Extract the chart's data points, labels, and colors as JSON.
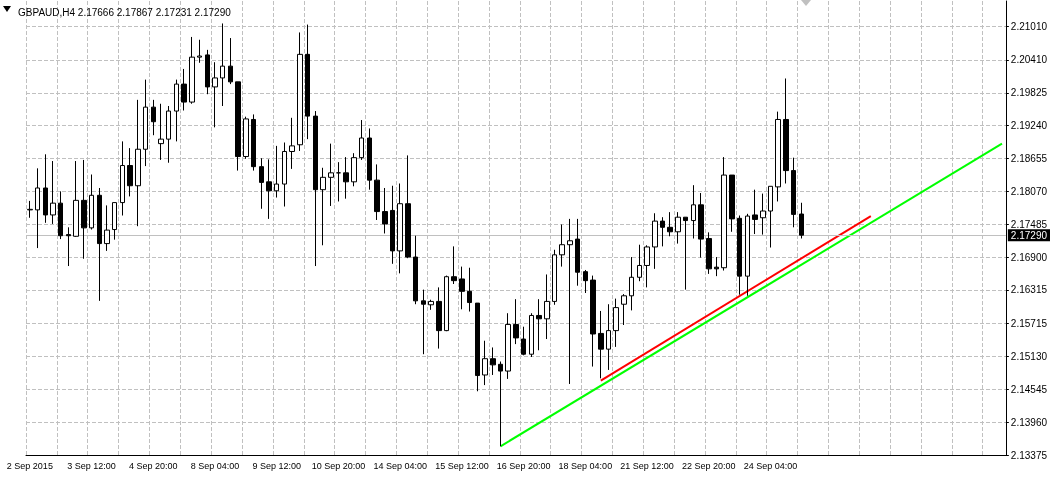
{
  "chart_data": {
    "type": "candlestick",
    "title": "GBPAUD,H4 2.17666 2.17867 2.17231 2.17290",
    "categories": [
      "2 Sep 2015",
      null,
      null,
      null,
      null,
      null,
      null,
      null,
      "3 Sep 12:00",
      null,
      null,
      null,
      null,
      null,
      null,
      null,
      "4 Sep 20:00",
      null,
      null,
      null,
      null,
      null,
      null,
      null,
      "8 Sep 04:00",
      null,
      null,
      null,
      null,
      null,
      null,
      null,
      "9 Sep 12:00",
      null,
      null,
      null,
      null,
      null,
      null,
      null,
      "10 Sep 20:00",
      null,
      null,
      null,
      null,
      null,
      null,
      null,
      "14 Sep 04:00",
      null,
      null,
      null,
      null,
      null,
      null,
      null,
      "15 Sep 12:00",
      null,
      null,
      null,
      null,
      null,
      null,
      null,
      "16 Sep 20:00",
      null,
      null,
      null,
      null,
      null,
      null,
      null,
      "18 Sep 04:00",
      null,
      null,
      null,
      null,
      null,
      null,
      null,
      "21 Sep 12:00",
      null,
      null,
      null,
      null,
      null,
      null,
      null,
      "22 Sep 20:00",
      null,
      null,
      null,
      null,
      null,
      null,
      null,
      "24 Sep 04:00",
      null,
      null,
      null,
      null,
      null,
      null,
      null,
      null,
      null,
      null,
      null,
      null,
      null,
      null,
      null,
      null,
      null,
      null,
      null,
      null,
      null,
      null,
      null,
      null,
      null,
      null,
      null,
      null,
      null,
      null
    ],
    "ohlc": [
      [
        2.1774,
        2.179,
        2.176,
        2.1775
      ],
      [
        2.1774,
        2.1848,
        2.1706,
        2.1813
      ],
      [
        2.1813,
        2.1873,
        2.1751,
        2.1765
      ],
      [
        2.1765,
        2.1861,
        2.1749,
        2.1786
      ],
      [
        2.1786,
        2.1807,
        2.1722,
        2.1728
      ],
      [
        2.173,
        2.1743,
        2.1674,
        2.1728
      ],
      [
        2.1727,
        2.1861,
        2.1726,
        2.1791
      ],
      [
        2.1791,
        2.1863,
        2.1687,
        2.1742
      ],
      [
        2.1742,
        2.1837,
        2.1739,
        2.18
      ],
      [
        2.18,
        2.1813,
        2.1612,
        2.1714
      ],
      [
        2.1714,
        2.1782,
        2.1701,
        2.1738
      ],
      [
        2.1739,
        2.1787,
        2.1721,
        2.1787
      ],
      [
        2.1787,
        2.1896,
        2.1764,
        2.1853
      ],
      [
        2.1853,
        2.1884,
        2.1798,
        2.1817
      ],
      [
        2.1817,
        2.197,
        2.1745,
        2.1882
      ],
      [
        2.1882,
        2.2006,
        2.1852,
        2.1957
      ],
      [
        2.1957,
        2.197,
        2.1907,
        2.1931
      ],
      [
        2.1892,
        2.1963,
        2.1863,
        2.19
      ],
      [
        2.19,
        2.1959,
        2.1858,
        2.195
      ],
      [
        2.195,
        2.2006,
        2.1896,
        2.1998
      ],
      [
        2.1998,
        2.2025,
        2.1951,
        2.1966
      ],
      [
        2.1966,
        2.2082,
        2.1963,
        2.2046
      ],
      [
        2.2046,
        2.2077,
        2.2036,
        2.2048
      ],
      [
        2.205,
        2.2059,
        2.198,
        2.1993
      ],
      [
        2.1993,
        2.2037,
        2.1921,
        2.2009
      ],
      [
        2.2009,
        2.2106,
        2.1959,
        2.203
      ],
      [
        2.203,
        2.208,
        2.1998,
        2.2002
      ],
      [
        2.2002,
        2.2002,
        2.1844,
        2.1869
      ],
      [
        2.1869,
        2.194,
        2.1865,
        2.1936
      ],
      [
        2.1935,
        2.1944,
        2.1844,
        2.1851
      ],
      [
        2.1851,
        2.1866,
        2.1776,
        2.1823
      ],
      [
        2.1824,
        2.1864,
        2.1758,
        2.1808
      ],
      [
        2.1808,
        2.1888,
        2.1796,
        2.182
      ],
      [
        2.182,
        2.1894,
        2.178,
        2.1878
      ],
      [
        2.1878,
        2.1938,
        2.1847,
        2.1888
      ],
      [
        2.189,
        2.209,
        2.1879,
        2.2051
      ],
      [
        2.2051,
        2.2104,
        2.19,
        2.1941
      ],
      [
        2.1941,
        2.195,
        2.1674,
        2.181
      ],
      [
        2.181,
        2.1849,
        2.1711,
        2.1832
      ],
      [
        2.1832,
        2.1892,
        2.1781,
        2.184
      ],
      [
        2.184,
        2.1859,
        2.1789,
        2.184
      ],
      [
        2.184,
        2.1868,
        2.1794,
        2.1824
      ],
      [
        2.1824,
        2.1875,
        2.1816,
        2.1867
      ],
      [
        2.1867,
        2.1934,
        2.1863,
        2.1902
      ],
      [
        2.1902,
        2.1919,
        2.181,
        2.1827
      ],
      [
        2.1827,
        2.1855,
        2.1756,
        2.1771
      ],
      [
        2.1771,
        2.1813,
        2.1732,
        2.1749
      ],
      [
        2.1773,
        2.1817,
        2.1678,
        2.1701
      ],
      [
        2.1701,
        2.1821,
        2.1661,
        2.1785
      ],
      [
        2.1785,
        2.1871,
        2.1688,
        2.169
      ],
      [
        2.169,
        2.1728,
        2.1606,
        2.1612
      ],
      [
        2.1612,
        2.1632,
        2.1517,
        2.1606
      ],
      [
        2.1605,
        2.1614,
        2.1596,
        2.1611
      ],
      [
        2.1611,
        2.1636,
        2.1527,
        2.1559
      ],
      [
        2.1559,
        2.1657,
        2.1558,
        2.1655
      ],
      [
        2.1655,
        2.1709,
        2.1642,
        2.1648
      ],
      [
        2.1651,
        2.1673,
        2.1597,
        2.1629
      ],
      [
        2.1629,
        2.1671,
        2.1593,
        2.1609
      ],
      [
        2.1608,
        2.1608,
        2.1451,
        2.1479
      ],
      [
        2.148,
        2.1541,
        2.1462,
        2.1509
      ],
      [
        2.1509,
        2.1529,
        2.148,
        2.1498
      ],
      [
        2.1499,
        2.1504,
        2.1353,
        2.1487
      ],
      [
        2.1487,
        2.159,
        2.1473,
        2.157
      ],
      [
        2.157,
        2.1615,
        2.1535,
        2.1546
      ],
      [
        2.1544,
        2.1566,
        2.1515,
        2.1517
      ],
      [
        2.1517,
        2.159,
        2.1512,
        2.1586
      ],
      [
        2.1586,
        2.1615,
        2.1524,
        2.158
      ],
      [
        2.158,
        2.1659,
        2.1544,
        2.1611
      ],
      [
        2.1611,
        2.1703,
        2.1605,
        2.1694
      ],
      [
        2.1694,
        2.1748,
        2.1673,
        2.1712
      ],
      [
        2.1712,
        2.1758,
        2.1464,
        2.1719
      ],
      [
        2.1722,
        2.1758,
        2.1639,
        2.1663
      ],
      [
        2.1664,
        2.1667,
        2.1626,
        2.1648
      ],
      [
        2.1649,
        2.1657,
        2.1495,
        2.1553
      ],
      [
        2.1554,
        2.1594,
        2.1474,
        2.1526
      ],
      [
        2.1526,
        2.1606,
        2.1489,
        2.1559
      ],
      [
        2.1559,
        2.1616,
        2.153,
        2.16
      ],
      [
        2.1606,
        2.1624,
        2.1569,
        2.1621
      ],
      [
        2.1621,
        2.169,
        2.1595,
        2.1654
      ],
      [
        2.1654,
        2.1712,
        2.1647,
        2.1675
      ],
      [
        2.1675,
        2.1711,
        2.1636,
        2.1708
      ],
      [
        2.1708,
        2.1768,
        2.1669,
        2.1754
      ],
      [
        2.1754,
        2.1761,
        2.1709,
        2.1743
      ],
      [
        2.1743,
        2.177,
        2.1727,
        2.1735
      ],
      [
        2.1735,
        2.177,
        2.1714,
        2.1761
      ],
      [
        2.1761,
        2.1761,
        2.1632,
        2.1755
      ],
      [
        2.1755,
        2.1818,
        2.1723,
        2.1783
      ],
      [
        2.1783,
        2.1804,
        2.1689,
        2.1722
      ],
      [
        2.1723,
        2.1734,
        2.166,
        2.1669
      ],
      [
        2.1672,
        2.169,
        2.1656,
        2.1669
      ],
      [
        2.1671,
        2.1868,
        2.1666,
        2.1836
      ],
      [
        2.1836,
        2.1836,
        2.1735,
        2.1758
      ],
      [
        2.1759,
        2.1764,
        2.1623,
        2.1656
      ],
      [
        2.1656,
        2.1767,
        2.1621,
        2.1763
      ],
      [
        2.1765,
        2.181,
        2.1731,
        2.1757
      ],
      [
        2.176,
        2.1803,
        2.173,
        2.1772
      ],
      [
        2.1772,
        2.1816,
        2.1707,
        2.1816
      ],
      [
        2.1815,
        2.1949,
        2.1789,
        2.1935
      ],
      [
        2.1935,
        2.2008,
        2.1821,
        2.1844
      ],
      [
        2.1844,
        2.1867,
        2.1743,
        2.1766
      ],
      [
        2.17666,
        2.17867,
        2.17231,
        2.1729
      ],
      null,
      null,
      null,
      null,
      null,
      null,
      null,
      null,
      null,
      null,
      null,
      null,
      null,
      null,
      null,
      null,
      null,
      null,
      null,
      null,
      null,
      null,
      null,
      null,
      null,
      null
    ],
    "series": [
      {
        "type": "line",
        "color": "#00ff00",
        "values": [
          null,
          null,
          null,
          null,
          null,
          null,
          null,
          null,
          null,
          null,
          null,
          null,
          null,
          null,
          null,
          null,
          null,
          null,
          null,
          null,
          null,
          null,
          null,
          null,
          null,
          null,
          null,
          null,
          null,
          null,
          null,
          null,
          null,
          null,
          null,
          null,
          null,
          null,
          null,
          null,
          null,
          null,
          null,
          null,
          null,
          null,
          null,
          null,
          null,
          null,
          null,
          null,
          null,
          null,
          null,
          null,
          null,
          null,
          null,
          null,
          null,
          2.1353,
          null,
          null,
          null,
          null,
          null,
          null,
          null,
          null,
          null,
          null,
          null,
          null,
          null,
          null,
          null,
          null,
          null,
          null,
          null,
          null,
          null,
          null,
          null,
          null,
          null,
          null,
          null,
          null,
          null,
          null,
          null,
          null,
          null,
          null,
          null,
          null,
          null,
          null,
          null,
          null,
          null,
          null,
          null,
          null,
          null,
          null,
          null,
          null,
          null,
          null,
          null,
          null,
          null,
          null,
          null,
          null,
          null,
          null,
          null,
          null,
          null,
          null,
          null,
          null,
          2.1892
        ]
      },
      {
        "type": "line",
        "color": "#ff0000",
        "values": [
          null,
          null,
          null,
          null,
          null,
          null,
          null,
          null,
          null,
          null,
          null,
          null,
          null,
          null,
          null,
          null,
          null,
          null,
          null,
          null,
          null,
          null,
          null,
          null,
          null,
          null,
          null,
          null,
          null,
          null,
          null,
          null,
          null,
          null,
          null,
          null,
          null,
          null,
          null,
          null,
          null,
          null,
          null,
          null,
          null,
          null,
          null,
          null,
          null,
          null,
          null,
          null,
          null,
          null,
          null,
          null,
          null,
          null,
          null,
          null,
          null,
          null,
          null,
          null,
          null,
          null,
          null,
          null,
          null,
          null,
          null,
          null,
          null,
          null,
          2.147,
          null,
          null,
          null,
          null,
          null,
          null,
          null,
          null,
          null,
          null,
          null,
          null,
          null,
          null,
          null,
          null,
          null,
          null,
          null,
          null,
          null,
          null,
          null,
          null,
          null,
          null,
          null,
          null,
          null,
          null,
          null,
          null,
          null,
          null,
          2.1763,
          null,
          null,
          null,
          null,
          null,
          null,
          null,
          null,
          null,
          null,
          null,
          null,
          null,
          null,
          null,
          null,
          null
        ]
      }
    ],
    "ylim": [
      2.13375,
      2.2146
    ],
    "yticks": [
      {
        "value": 2.13375,
        "label": "2.13375"
      },
      {
        "value": 2.1396,
        "label": "2.13960"
      },
      {
        "value": 2.14545,
        "label": "2.14545"
      },
      {
        "value": 2.1513,
        "label": "2.15130"
      },
      {
        "value": 2.15715,
        "label": "2.15715"
      },
      {
        "value": 2.16315,
        "label": "2.16315"
      },
      {
        "value": 2.169,
        "label": "2.16900"
      },
      {
        "value": 2.17485,
        "label": "2.17485"
      },
      {
        "value": 2.1807,
        "label": "2.18070"
      },
      {
        "value": 2.18655,
        "label": "2.18655"
      },
      {
        "value": 2.1924,
        "label": "2.19240"
      },
      {
        "value": 2.19825,
        "label": "2.19825"
      },
      {
        "value": 2.2041,
        "label": "2.20410"
      },
      {
        "value": 2.2101,
        "label": "2.21010"
      }
    ],
    "grid": true,
    "marker": "none",
    "ref_lines": [
      {
        "axis": "y",
        "value": 2.1729,
        "label": "2.17290",
        "color": "#c0c0c0"
      }
    ]
  }
}
